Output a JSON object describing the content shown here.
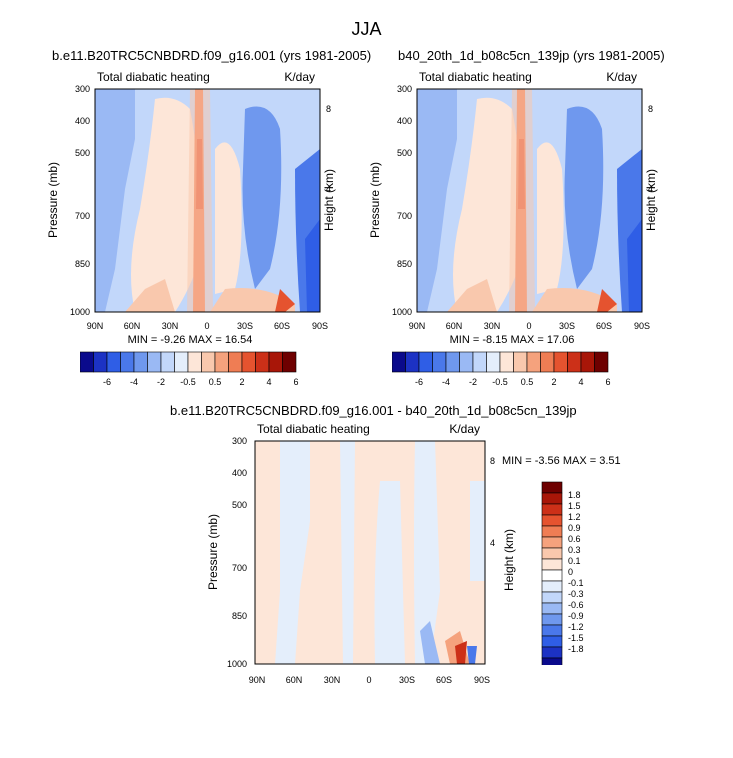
{
  "page_title": "JJA",
  "chart_data": [
    {
      "type": "heatmap",
      "panel": "left",
      "title": "b.e11.B20TRC5CNBDRD.f09_g16.001 (yrs 1981-2005)",
      "left_string": "Total diabatic heating",
      "right_string": "K/day",
      "ylabel": "Pressure (mb)",
      "y2label": "Height (km)",
      "x_ticks": [
        "90N",
        "60N",
        "30N",
        "0",
        "30S",
        "60S",
        "90S"
      ],
      "y_ticks": [
        "300",
        "400",
        "500",
        "700",
        "850",
        "1000"
      ],
      "y2_ticks": [
        "8",
        "4"
      ],
      "min_max_text": "MIN =  -9.26  MAX =  16.54",
      "colorbar_labels": [
        "-6",
        "-4",
        "-2",
        "-0.5",
        "0.5",
        "2",
        "4",
        "6"
      ],
      "xlim": [
        90,
        -90
      ],
      "ylim": [
        1000,
        300
      ]
    },
    {
      "type": "heatmap",
      "panel": "right",
      "title": "b40_20th_1d_b08c5cn_139jp (yrs 1981-2005)",
      "left_string": "Total diabatic heating",
      "right_string": "K/day",
      "ylabel": "Pressure (mb)",
      "y2label": "Height (km)",
      "x_ticks": [
        "90N",
        "60N",
        "30N",
        "0",
        "30S",
        "60S",
        "90S"
      ],
      "y_ticks": [
        "300",
        "400",
        "500",
        "700",
        "850",
        "1000"
      ],
      "y2_ticks": [
        "8",
        "4"
      ],
      "min_max_text": "MIN =  -8.15  MAX =  17.06",
      "colorbar_labels": [
        "-6",
        "-4",
        "-2",
        "-0.5",
        "0.5",
        "2",
        "4",
        "6"
      ],
      "xlim": [
        90,
        -90
      ],
      "ylim": [
        1000,
        300
      ]
    },
    {
      "type": "heatmap",
      "panel": "difference",
      "title": "b.e11.B20TRC5CNBDRD.f09_g16.001 - b40_20th_1d_b08c5cn_139jp",
      "left_string": "Total diabatic heating",
      "right_string": "K/day",
      "ylabel": "Pressure (mb)",
      "y2label": "Height (km)",
      "x_ticks": [
        "90N",
        "60N",
        "30N",
        "0",
        "30S",
        "60S",
        "90S"
      ],
      "y_ticks": [
        "300",
        "400",
        "500",
        "700",
        "850",
        "1000"
      ],
      "y2_ticks": [
        "8",
        "4"
      ],
      "min_max_text": "MIN =  -3.56  MAX =   3.51",
      "colorbar_labels": [
        "1.8",
        "1.5",
        "1.2",
        "0.9",
        "0.6",
        "0.3",
        "0.1",
        "0",
        "-0.1",
        "-0.3",
        "-0.6",
        "-0.9",
        "-1.2",
        "-1.5",
        "-1.8"
      ],
      "xlim": [
        90,
        -90
      ],
      "ylim": [
        1000,
        300
      ]
    }
  ],
  "colors": {
    "full_scale": [
      "#0a0a8c",
      "#1c32c4",
      "#2f5ee6",
      "#4a78ea",
      "#6f98ee",
      "#9ab9f4",
      "#c2d7fa",
      "#e4eefb",
      "#fde6d8",
      "#f9c8ad",
      "#f5a27d",
      "#ef7d54",
      "#e5532f",
      "#cc3018",
      "#a81608",
      "#6e0000"
    ],
    "diff_scale": [
      "#6e0000",
      "#a81608",
      "#cc3018",
      "#e5532f",
      "#ef7d54",
      "#f5a27d",
      "#f9c8ad",
      "#fde6d8",
      "#ffffff",
      "#e4eefb",
      "#c2d7fa",
      "#9ab9f4",
      "#6f98ee",
      "#4a78ea",
      "#2f5ee6",
      "#1c32c4",
      "#0a0a8c"
    ]
  }
}
